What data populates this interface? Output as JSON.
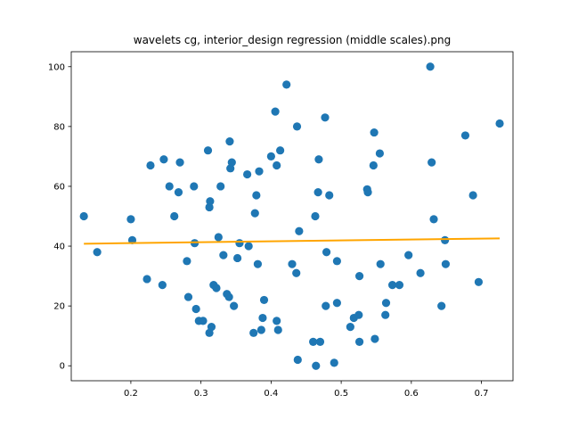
{
  "chart_data": {
    "type": "scatter",
    "title": "wavelets cg, interior_design regression (middle scales).png",
    "xlabel": "",
    "ylabel": "",
    "xlim": [
      0.115,
      0.745
    ],
    "ylim": [
      -5,
      105
    ],
    "xticks": [
      0.2,
      0.3,
      0.4,
      0.5,
      0.6,
      0.7
    ],
    "yticks": [
      0,
      20,
      40,
      60,
      80,
      100
    ],
    "xtick_labels": [
      "0.2",
      "0.3",
      "0.4",
      "0.5",
      "0.6",
      "0.7"
    ],
    "ytick_labels": [
      "0",
      "20",
      "40",
      "60",
      "80",
      "100"
    ],
    "grid": false,
    "colors": {
      "points": "#1f77b4",
      "line": "#ffa500"
    },
    "points": [
      [
        0.133,
        50
      ],
      [
        0.152,
        38
      ],
      [
        0.2,
        49
      ],
      [
        0.202,
        42
      ],
      [
        0.223,
        29
      ],
      [
        0.228,
        67
      ],
      [
        0.245,
        27
      ],
      [
        0.247,
        69
      ],
      [
        0.255,
        60
      ],
      [
        0.262,
        50
      ],
      [
        0.268,
        58
      ],
      [
        0.27,
        68
      ],
      [
        0.28,
        35
      ],
      [
        0.282,
        23
      ],
      [
        0.29,
        60
      ],
      [
        0.291,
        41
      ],
      [
        0.293,
        19
      ],
      [
        0.297,
        15
      ],
      [
        0.303,
        15
      ],
      [
        0.31,
        72
      ],
      [
        0.312,
        11
      ],
      [
        0.312,
        53
      ],
      [
        0.313,
        55
      ],
      [
        0.315,
        13
      ],
      [
        0.318,
        27
      ],
      [
        0.322,
        26
      ],
      [
        0.325,
        43
      ],
      [
        0.328,
        60
      ],
      [
        0.332,
        37
      ],
      [
        0.337,
        24
      ],
      [
        0.34,
        23
      ],
      [
        0.341,
        75
      ],
      [
        0.342,
        66
      ],
      [
        0.344,
        68
      ],
      [
        0.347,
        20
      ],
      [
        0.352,
        36
      ],
      [
        0.355,
        41
      ],
      [
        0.366,
        64
      ],
      [
        0.368,
        40
      ],
      [
        0.375,
        11
      ],
      [
        0.377,
        51
      ],
      [
        0.379,
        57
      ],
      [
        0.381,
        34
      ],
      [
        0.383,
        65
      ],
      [
        0.386,
        12
      ],
      [
        0.388,
        16
      ],
      [
        0.39,
        22
      ],
      [
        0.4,
        70
      ],
      [
        0.406,
        85
      ],
      [
        0.408,
        15
      ],
      [
        0.408,
        67
      ],
      [
        0.41,
        12
      ],
      [
        0.413,
        72
      ],
      [
        0.422,
        94
      ],
      [
        0.43,
        34
      ],
      [
        0.436,
        31
      ],
      [
        0.437,
        80
      ],
      [
        0.438,
        2
      ],
      [
        0.44,
        45
      ],
      [
        0.46,
        8
      ],
      [
        0.463,
        50
      ],
      [
        0.464,
        0
      ],
      [
        0.467,
        58
      ],
      [
        0.468,
        69
      ],
      [
        0.47,
        8
      ],
      [
        0.477,
        83
      ],
      [
        0.478,
        20
      ],
      [
        0.479,
        38
      ],
      [
        0.483,
        57
      ],
      [
        0.49,
        1
      ],
      [
        0.494,
        21
      ],
      [
        0.494,
        35
      ],
      [
        0.513,
        13
      ],
      [
        0.518,
        16
      ],
      [
        0.525,
        17
      ],
      [
        0.526,
        8
      ],
      [
        0.526,
        30
      ],
      [
        0.537,
        59
      ],
      [
        0.538,
        58
      ],
      [
        0.546,
        67
      ],
      [
        0.547,
        78
      ],
      [
        0.548,
        9
      ],
      [
        0.555,
        71
      ],
      [
        0.556,
        34
      ],
      [
        0.563,
        17
      ],
      [
        0.564,
        21
      ],
      [
        0.573,
        27
      ],
      [
        0.583,
        27
      ],
      [
        0.596,
        37
      ],
      [
        0.613,
        31
      ],
      [
        0.627,
        100
      ],
      [
        0.629,
        68
      ],
      [
        0.632,
        49
      ],
      [
        0.643,
        20
      ],
      [
        0.648,
        42
      ],
      [
        0.649,
        34
      ],
      [
        0.677,
        77
      ],
      [
        0.688,
        57
      ],
      [
        0.696,
        28
      ],
      [
        0.726,
        81
      ]
    ],
    "regression_line": {
      "x": [
        0.133,
        0.726
      ],
      "y": [
        40.8,
        42.6
      ]
    }
  }
}
